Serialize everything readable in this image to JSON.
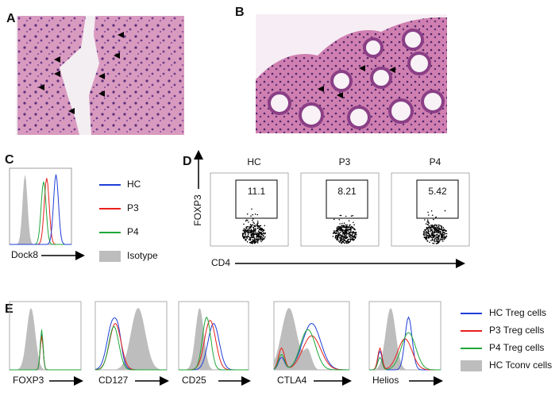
{
  "panels": {
    "A": {
      "label": "A"
    },
    "B": {
      "label": "B"
    },
    "C": {
      "label": "C",
      "x_label": "Dock8",
      "legend": [
        "HC",
        "P3",
        "P4",
        "Isotype"
      ]
    },
    "D": {
      "label": "D",
      "y_label": "FOXP3",
      "x_label": "CD4",
      "plots": [
        {
          "title": "HC",
          "gate": 11.1
        },
        {
          "title": "P3",
          "gate": 8.21
        },
        {
          "title": "P4",
          "gate": 5.42
        }
      ]
    },
    "E": {
      "label": "E",
      "plots": [
        "FOXP3",
        "CD127",
        "CD25",
        "CTLA4",
        "Helios"
      ],
      "legend": [
        "HC Treg cells",
        "P3 Treg cells",
        "P4 Treg cells",
        "HC Tconv cells"
      ]
    }
  }
}
